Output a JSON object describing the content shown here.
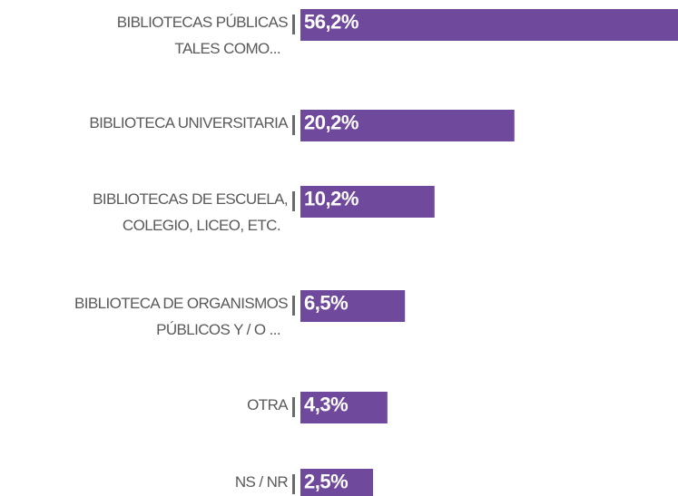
{
  "chart_data": {
    "type": "barh",
    "categories": [
      [
        "BIBLIOTECAS PÚBLICAS",
        "TALES COMO..."
      ],
      [
        "BIBLIOTECA UNIVERSITARIA"
      ],
      [
        "BIBLIOTECAS DE ESCUELA,",
        "COLEGIO, LICEO, ETC."
      ],
      [
        "BIBLIOTECA DE ORGANISMOS",
        "PÚBLICOS Y / O ..."
      ],
      [
        "OTRA"
      ],
      [
        "NS / NR"
      ]
    ],
    "values": [
      56.2,
      20.2,
      10.2,
      6.5,
      4.3,
      2.5
    ],
    "value_labels": [
      "56,2%",
      "20,2%",
      "10,2%",
      "6,5%",
      "4,3%",
      "2,5%"
    ],
    "color": "#6f4a9c"
  }
}
